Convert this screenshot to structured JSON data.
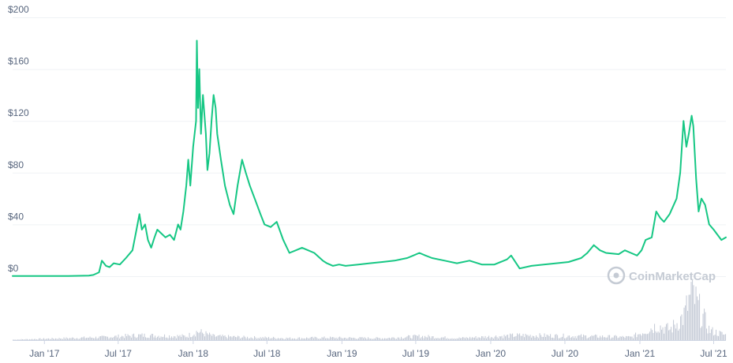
{
  "watermark": {
    "text": "CoinMarketCap"
  },
  "colors": {
    "price_line": "#16c784",
    "volume": "#c7cdd8",
    "grid": "#eff2f5",
    "axis": "#cfd6e4",
    "label": "#58667e"
  },
  "chart_data": {
    "type": "line",
    "title": "",
    "xlabel": "",
    "ylabel": "",
    "x_range": [
      "2016-10-15",
      "2021-07-31"
    ],
    "ylim": [
      0,
      200
    ],
    "y_ticks": [
      {
        "value": 0,
        "label": "$0"
      },
      {
        "value": 40,
        "label": "$40"
      },
      {
        "value": 80,
        "label": "$80"
      },
      {
        "value": 120,
        "label": "$120"
      },
      {
        "value": 160,
        "label": "$160"
      },
      {
        "value": 200,
        "label": "$200"
      }
    ],
    "x_ticks": [
      {
        "date": "2017-01-01",
        "label": "Jan '17"
      },
      {
        "date": "2017-07-01",
        "label": "Jul '17"
      },
      {
        "date": "2018-01-01",
        "label": "Jan '18"
      },
      {
        "date": "2018-07-01",
        "label": "Jul '18"
      },
      {
        "date": "2019-01-01",
        "label": "Jan '19"
      },
      {
        "date": "2019-07-01",
        "label": "Jul '19"
      },
      {
        "date": "2020-01-01",
        "label": "Jan '20"
      },
      {
        "date": "2020-07-01",
        "label": "Jul '20"
      },
      {
        "date": "2021-01-01",
        "label": "Jan '21"
      },
      {
        "date": "2021-07-01",
        "label": "Jul '21"
      }
    ],
    "grid": true,
    "series": [
      {
        "points": [
          [
            "2016-10-15",
            0.1
          ],
          [
            "2017-01-01",
            0.1
          ],
          [
            "2017-03-01",
            0.2
          ],
          [
            "2017-04-20",
            0.5
          ],
          [
            "2017-05-01",
            1
          ],
          [
            "2017-05-15",
            3
          ],
          [
            "2017-05-22",
            12
          ],
          [
            "2017-06-01",
            8
          ],
          [
            "2017-06-10",
            7
          ],
          [
            "2017-06-20",
            10
          ],
          [
            "2017-07-05",
            9
          ],
          [
            "2017-07-20",
            14
          ],
          [
            "2017-08-05",
            20
          ],
          [
            "2017-08-15",
            36
          ],
          [
            "2017-08-22",
            48
          ],
          [
            "2017-08-28",
            36
          ],
          [
            "2017-09-05",
            40
          ],
          [
            "2017-09-12",
            28
          ],
          [
            "2017-09-20",
            22
          ],
          [
            "2017-09-28",
            30
          ],
          [
            "2017-10-05",
            36
          ],
          [
            "2017-10-15",
            33
          ],
          [
            "2017-10-25",
            30
          ],
          [
            "2017-11-05",
            32
          ],
          [
            "2017-11-15",
            28
          ],
          [
            "2017-11-25",
            40
          ],
          [
            "2017-12-01",
            36
          ],
          [
            "2017-12-08",
            50
          ],
          [
            "2017-12-15",
            70
          ],
          [
            "2017-12-20",
            90
          ],
          [
            "2017-12-25",
            70
          ],
          [
            "2018-01-01",
            100
          ],
          [
            "2018-01-08",
            120
          ],
          [
            "2018-01-10",
            182
          ],
          [
            "2018-01-13",
            130
          ],
          [
            "2018-01-16",
            160
          ],
          [
            "2018-01-20",
            110
          ],
          [
            "2018-01-25",
            140
          ],
          [
            "2018-02-01",
            110
          ],
          [
            "2018-02-05",
            82
          ],
          [
            "2018-02-10",
            95
          ],
          [
            "2018-02-15",
            120
          ],
          [
            "2018-02-20",
            140
          ],
          [
            "2018-02-25",
            130
          ],
          [
            "2018-03-01",
            110
          ],
          [
            "2018-03-10",
            90
          ],
          [
            "2018-03-20",
            70
          ],
          [
            "2018-04-01",
            55
          ],
          [
            "2018-04-10",
            48
          ],
          [
            "2018-04-20",
            70
          ],
          [
            "2018-05-01",
            90
          ],
          [
            "2018-05-10",
            80
          ],
          [
            "2018-05-20",
            70
          ],
          [
            "2018-06-01",
            60
          ],
          [
            "2018-06-15",
            48
          ],
          [
            "2018-06-25",
            40
          ],
          [
            "2018-07-10",
            38
          ],
          [
            "2018-07-25",
            42
          ],
          [
            "2018-08-10",
            28
          ],
          [
            "2018-08-25",
            18
          ],
          [
            "2018-09-10",
            20
          ],
          [
            "2018-09-25",
            22
          ],
          [
            "2018-10-10",
            20
          ],
          [
            "2018-10-25",
            18
          ],
          [
            "2018-11-15",
            12
          ],
          [
            "2018-11-25",
            10
          ],
          [
            "2018-12-10",
            8
          ],
          [
            "2018-12-25",
            9
          ],
          [
            "2019-01-10",
            8
          ],
          [
            "2019-02-10",
            9
          ],
          [
            "2019-03-10",
            10
          ],
          [
            "2019-04-10",
            11
          ],
          [
            "2019-05-10",
            12
          ],
          [
            "2019-06-10",
            14
          ],
          [
            "2019-06-25",
            16
          ],
          [
            "2019-07-10",
            18
          ],
          [
            "2019-07-25",
            16
          ],
          [
            "2019-08-10",
            14
          ],
          [
            "2019-09-10",
            12
          ],
          [
            "2019-10-10",
            10
          ],
          [
            "2019-11-10",
            12
          ],
          [
            "2019-12-10",
            9
          ],
          [
            "2020-01-10",
            9
          ],
          [
            "2020-02-10",
            13
          ],
          [
            "2020-02-20",
            16
          ],
          [
            "2020-03-12",
            6
          ],
          [
            "2020-04-10",
            8
          ],
          [
            "2020-05-10",
            9
          ],
          [
            "2020-06-10",
            10
          ],
          [
            "2020-07-10",
            11
          ],
          [
            "2020-08-10",
            14
          ],
          [
            "2020-08-25",
            18
          ],
          [
            "2020-09-10",
            24
          ],
          [
            "2020-09-25",
            20
          ],
          [
            "2020-10-10",
            18
          ],
          [
            "2020-11-10",
            17
          ],
          [
            "2020-11-25",
            20
          ],
          [
            "2020-12-10",
            18
          ],
          [
            "2020-12-25",
            16
          ],
          [
            "2021-01-05",
            20
          ],
          [
            "2021-01-15",
            28
          ],
          [
            "2021-01-30",
            30
          ],
          [
            "2021-02-10",
            50
          ],
          [
            "2021-02-20",
            45
          ],
          [
            "2021-03-01",
            42
          ],
          [
            "2021-03-15",
            48
          ],
          [
            "2021-04-01",
            60
          ],
          [
            "2021-04-10",
            80
          ],
          [
            "2021-04-18",
            120
          ],
          [
            "2021-04-25",
            100
          ],
          [
            "2021-05-01",
            110
          ],
          [
            "2021-05-08",
            124
          ],
          [
            "2021-05-12",
            116
          ],
          [
            "2021-05-19",
            75
          ],
          [
            "2021-05-25",
            50
          ],
          [
            "2021-06-01",
            60
          ],
          [
            "2021-06-10",
            55
          ],
          [
            "2021-06-20",
            40
          ],
          [
            "2021-07-01",
            36
          ],
          [
            "2021-07-20",
            28
          ],
          [
            "2021-07-31",
            30
          ]
        ]
      }
    ],
    "volume": {
      "type": "bar",
      "series": [
        {
          "points": [
            [
              "2016-10-15",
              0.01
            ],
            [
              "2017-05-22",
              0.06
            ],
            [
              "2017-08-22",
              0.1
            ],
            [
              "2017-12-15",
              0.08
            ],
            [
              "2018-01-10",
              0.18
            ],
            [
              "2018-02-20",
              0.08
            ],
            [
              "2018-05-01",
              0.06
            ],
            [
              "2018-08-25",
              0.04
            ],
            [
              "2018-11-25",
              0.05
            ],
            [
              "2019-04-10",
              0.04
            ],
            [
              "2019-07-10",
              0.08
            ],
            [
              "2019-10-10",
              0.04
            ],
            [
              "2020-03-12",
              0.1
            ],
            [
              "2020-08-25",
              0.08
            ],
            [
              "2020-12-10",
              0.06
            ],
            [
              "2021-02-10",
              0.3
            ],
            [
              "2021-03-15",
              0.22
            ],
            [
              "2021-04-18",
              0.5
            ],
            [
              "2021-05-08",
              1.0
            ],
            [
              "2021-05-19",
              0.75
            ],
            [
              "2021-06-20",
              0.2
            ],
            [
              "2021-07-31",
              0.1
            ]
          ]
        }
      ]
    }
  }
}
